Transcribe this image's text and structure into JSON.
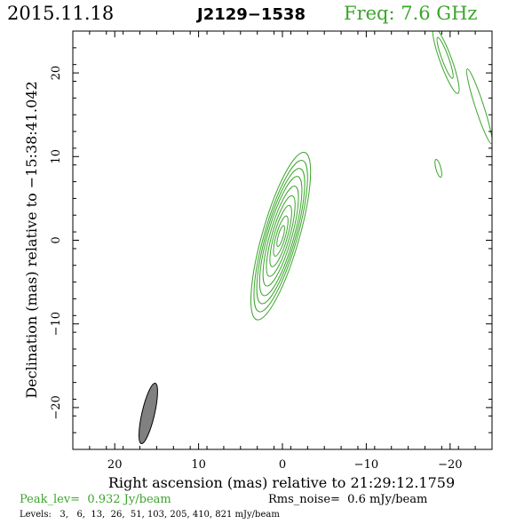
{
  "header": {
    "date": "2015.11.18",
    "source": "J2129−1538",
    "freq": "Freq: 7.6 GHz"
  },
  "footer": {
    "peak": "Peak_lev=  0.932 Jy/beam",
    "rms": "Rms_noise=  0.6 mJy/beam",
    "levels": "Levels:   3,   6,  13,  26,  51, 103, 205, 410, 821 mJy/beam"
  },
  "colors": {
    "contour": "#3aa52a",
    "beam": "#808080",
    "axes": "#000000"
  },
  "chart_data": {
    "type": "contour",
    "xlabel": "Right ascension (mas) relative to 21:29:12.1759",
    "ylabel": "Declination (mas) relative to −15:38:41.042",
    "xlim": [
      25,
      -25
    ],
    "ylim": [
      -25,
      25
    ],
    "x_ticks": [
      {
        "value": 20,
        "label": "20"
      },
      {
        "value": 10,
        "label": "10"
      },
      {
        "value": 0,
        "label": "0"
      },
      {
        "value": -10,
        "label": "−10"
      },
      {
        "value": -20,
        "label": "−20"
      }
    ],
    "y_ticks": [
      {
        "value": 20,
        "label": "20"
      },
      {
        "value": 10,
        "label": "10"
      },
      {
        "value": 0,
        "label": "0"
      },
      {
        "value": -10,
        "label": "−10"
      },
      {
        "value": -20,
        "label": "−20"
      }
    ],
    "levels_mJy": [
      3,
      6,
      13,
      26,
      51,
      103,
      205,
      410,
      821
    ],
    "core": {
      "center": [
        0.2,
        0.5
      ],
      "pa_deg": 16,
      "semi_axes": [
        [
          2.2,
          10.4
        ],
        [
          1.95,
          9.4
        ],
        [
          1.75,
          8.4
        ],
        [
          1.55,
          7.4
        ],
        [
          1.3,
          6.2
        ],
        [
          1.05,
          5.0
        ],
        [
          0.8,
          3.8
        ],
        [
          0.55,
          2.5
        ],
        [
          0.3,
          1.3
        ]
      ]
    },
    "side_features": [
      {
        "center": [
          -19.5,
          21.5
        ],
        "a": 0.7,
        "b": 4.2,
        "pa_deg": -20
      },
      {
        "center": [
          -19.4,
          21.8
        ],
        "a": 0.4,
        "b": 2.6,
        "pa_deg": -20
      },
      {
        "center": [
          -23.5,
          16.0
        ],
        "a": 0.5,
        "b": 4.7,
        "pa_deg": -18
      },
      {
        "center": [
          -18.6,
          8.6
        ],
        "a": 0.3,
        "b": 1.1,
        "pa_deg": -15
      }
    ],
    "beam": {
      "center": [
        16.0,
        -20.7
      ],
      "major_mas": 7.4,
      "minor_mas": 1.5,
      "pa_deg": 13
    }
  }
}
